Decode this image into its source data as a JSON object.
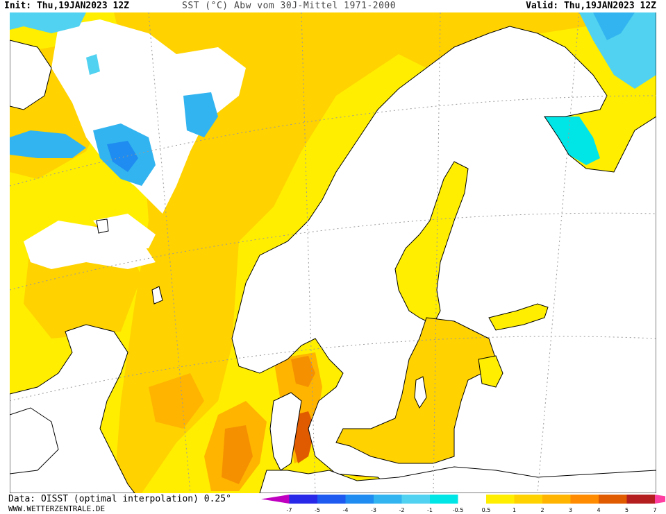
{
  "header": {
    "init": "Init: Thu,19JAN2023 12Z",
    "title": "SST (°C) Abw vom 30J-Mittel 1971-2000",
    "valid": "Valid: Thu,19JAN2023 12Z"
  },
  "footer": {
    "data_source": "Data: OISST (optimal interpolation) 0.25°",
    "website": "WWW.WETTERZENTRALE.DE"
  },
  "legend": {
    "labels": [
      "-7",
      "-5",
      "-4",
      "-3",
      "-2",
      "-1",
      "-0.5",
      "0.5",
      "1",
      "2",
      "3",
      "4",
      "5",
      "7"
    ],
    "colors": [
      "#c000c0",
      "#2828e8",
      "#1e5af0",
      "#1e8cf0",
      "#32b4f0",
      "#50d2f0",
      "#00e6e6",
      "#ffffff",
      "#ffee00",
      "#ffd200",
      "#ffb400",
      "#ff8c00",
      "#e05a00",
      "#b41e1e",
      "#ff3ca0"
    ]
  },
  "map_colors": {
    "land": "#ffffff",
    "neutral_sea": "#ffffff",
    "anomaly_0_5_to_1": "#ffee00",
    "anomaly_1_to_2": "#ffd200",
    "anomaly_2_to_3": "#ffb400",
    "anomaly_3_to_4": "#f59000",
    "anomaly_4_to_5": "#e05a00",
    "anomaly_minus_0_5_to_minus_1": "#00e6e6",
    "anomaly_minus_1_to_minus_2": "#32b4f0",
    "anomaly_minus_2_to_minus_3": "#1e8cf0",
    "coastline": "#000000",
    "gridline": "#9a9a9a"
  }
}
